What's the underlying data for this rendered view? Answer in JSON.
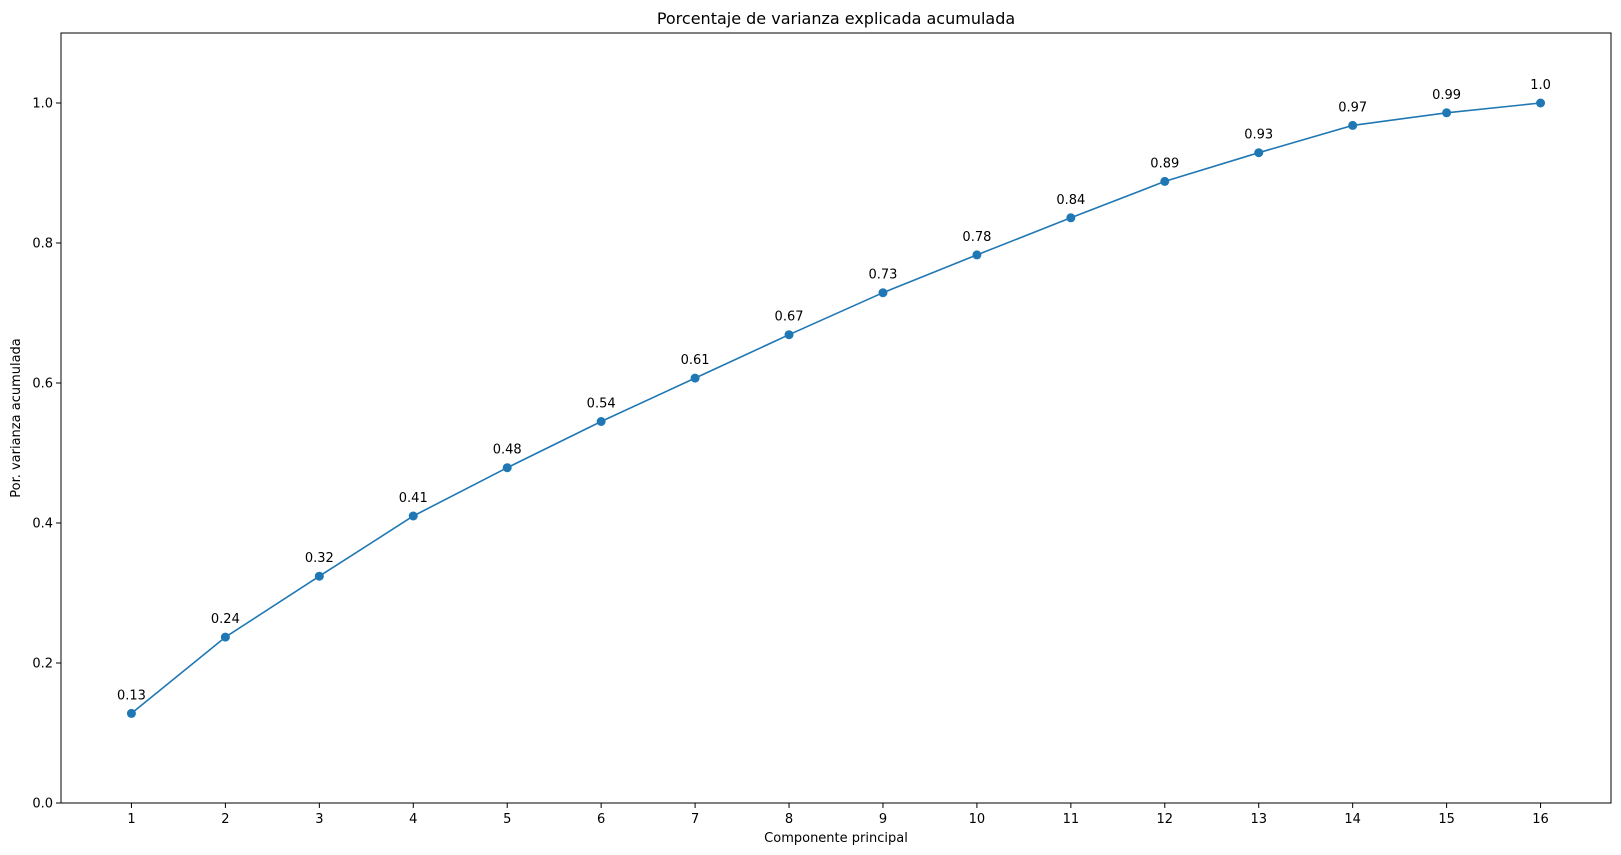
{
  "chart_data": {
    "type": "line",
    "title": "Porcentaje de varianza explicada acumulada",
    "xlabel": "Componente principal",
    "ylabel": "Por. varianza acumulada",
    "x": [
      1,
      2,
      3,
      4,
      5,
      6,
      7,
      8,
      9,
      10,
      11,
      12,
      13,
      14,
      15,
      16
    ],
    "series": [
      {
        "values": [
          0.128,
          0.237,
          0.324,
          0.41,
          0.479,
          0.545,
          0.607,
          0.669,
          0.729,
          0.783,
          0.836,
          0.888,
          0.929,
          0.968,
          0.986,
          1.0
        ]
      }
    ],
    "data_labels": [
      "0.13",
      "0.24",
      "0.32",
      "0.41",
      "0.48",
      "0.54",
      "0.61",
      "0.67",
      "0.73",
      "0.78",
      "0.84",
      "0.89",
      "0.93",
      "0.97",
      "0.99",
      "1.0"
    ],
    "xticks": [
      "1",
      "2",
      "3",
      "4",
      "5",
      "6",
      "7",
      "8",
      "9",
      "10",
      "11",
      "12",
      "13",
      "14",
      "15",
      "16"
    ],
    "yticks": [
      "0.0",
      "0.2",
      "0.4",
      "0.6",
      "0.8",
      "1.0"
    ],
    "ylim": [
      0,
      1.1
    ],
    "xlim": [
      0.25,
      16.75
    ],
    "grid": false,
    "marker": "circle",
    "color": "#1f77b4"
  }
}
